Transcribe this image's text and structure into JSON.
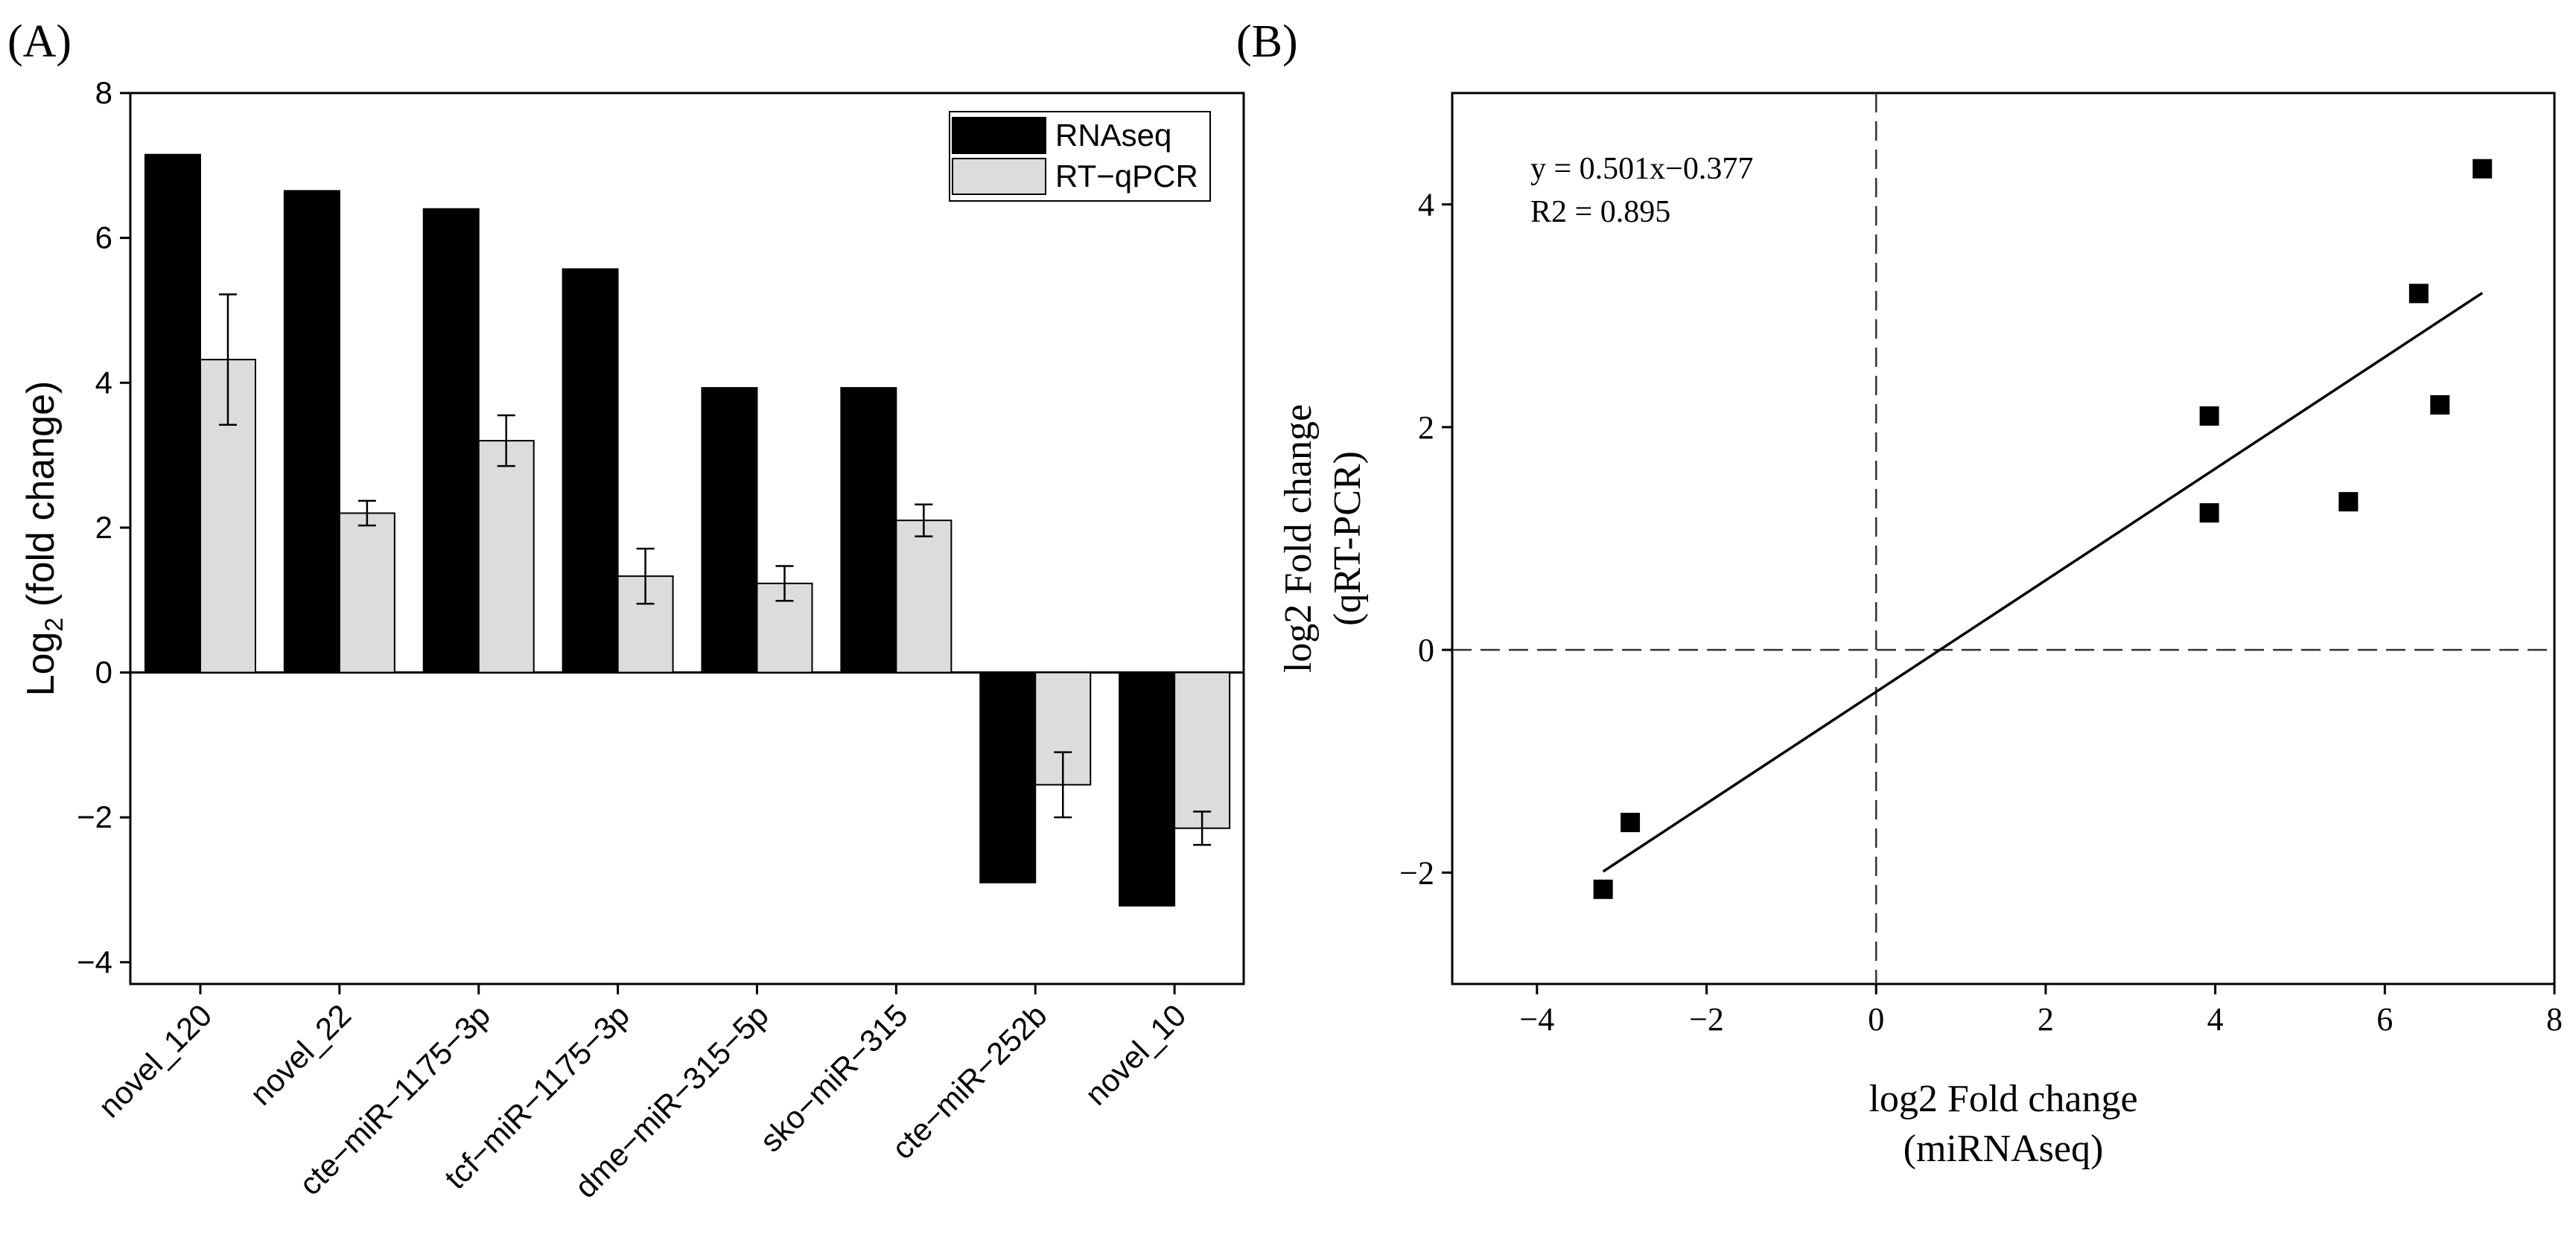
{
  "panel_a_label": "(A)",
  "panel_b_label": "(B)",
  "chart_data": [
    {
      "type": "bar",
      "panel": "A",
      "categories": [
        "novel_120",
        "novel_22",
        "cte−miR−1175−3p",
        "tcf−miR−1175−3p",
        "dme−miR−315−5p",
        "sko−miR−315",
        "cte−miR−252b",
        "novel_10"
      ],
      "series": [
        {
          "name": "RNAseq",
          "color": "#000000",
          "values": [
            7.15,
            6.65,
            6.4,
            5.57,
            3.93,
            3.93,
            -2.9,
            -3.22
          ]
        },
        {
          "name": "RT−qPCR",
          "color": "#dcdcdc",
          "values": [
            4.32,
            2.2,
            3.2,
            1.33,
            1.23,
            2.1,
            -1.55,
            -2.15
          ],
          "errors": [
            0.9,
            0.17,
            0.35,
            0.38,
            0.24,
            0.22,
            0.45,
            0.23
          ]
        }
      ],
      "ylabel_main": "Log",
      "ylabel_sub": "2",
      "ylabel_rest": " (fold change)",
      "xlabel": "",
      "ylim": [
        -4.3,
        8
      ],
      "yticks": [
        -4,
        -2,
        0,
        2,
        4,
        6,
        8
      ],
      "ytick_labels": [
        "−4",
        "−2",
        "0",
        "2",
        "4",
        "6",
        "8"
      ],
      "legend_position": "top-right"
    },
    {
      "type": "scatter",
      "panel": "B",
      "points": [
        {
          "x": 7.15,
          "y": 4.32
        },
        {
          "x": 6.4,
          "y": 3.2
        },
        {
          "x": 6.65,
          "y": 2.2
        },
        {
          "x": 5.57,
          "y": 1.33
        },
        {
          "x": 3.93,
          "y": 2.1
        },
        {
          "x": 3.93,
          "y": 1.23
        },
        {
          "x": -2.9,
          "y": -1.55
        },
        {
          "x": -3.22,
          "y": -2.15
        }
      ],
      "fit_line": {
        "slope": 0.501,
        "intercept": -0.377,
        "x_range": [
          -3.22,
          7.15
        ]
      },
      "equation": "y = 0.501x−0.377",
      "r2": "R2 = 0.895",
      "xlabel_line1": "log2 Fold change",
      "xlabel_line2": "(miRNAseq)",
      "ylabel_line1": "log2 Fold change",
      "ylabel_line2": "(qRT-PCR)",
      "xlim": [
        -5,
        8
      ],
      "ylim": [
        -3,
        5
      ],
      "xticks": [
        -4,
        -2,
        0,
        2,
        4,
        6,
        8
      ],
      "xtick_labels": [
        "−4",
        "−2",
        "0",
        "2",
        "4",
        "6",
        "8"
      ],
      "yticks": [
        -2,
        0,
        2,
        4
      ],
      "ytick_labels": [
        "−2",
        "0",
        "2",
        "4"
      ],
      "reference_lines": {
        "x": 0,
        "y": 0
      }
    }
  ]
}
